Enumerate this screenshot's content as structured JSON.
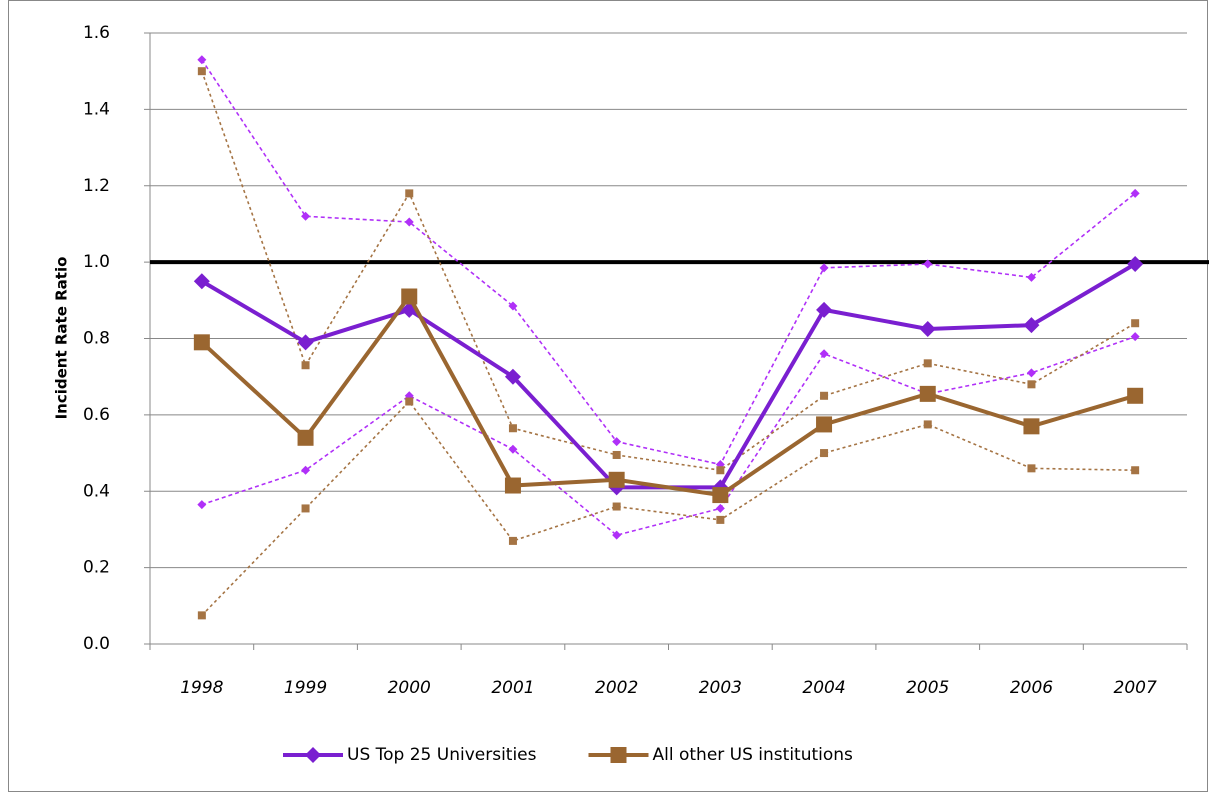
{
  "chart_data": {
    "type": "line",
    "y_label": "Incident Rate Ratio",
    "categories": [
      "1998",
      "1999",
      "2000",
      "2001",
      "2002",
      "2003",
      "2004",
      "2005",
      "2006",
      "2007"
    ],
    "ylim": [
      0,
      1.6
    ],
    "yticks": [
      {
        "value": 0,
        "label": "0.0"
      },
      0.2,
      0.4,
      0.6,
      0.8,
      {
        "value": 1,
        "label": "1.0"
      },
      1.2,
      1.4,
      1.6
    ],
    "grid": true,
    "reference_line": 1,
    "legend": "bottom",
    "series": [
      {
        "name": "US Top 25 Universities",
        "color": "#7a1fd0",
        "marker": "diamond",
        "style": "solid",
        "values": [
          0.95,
          0.79,
          0.875,
          0.7,
          0.41,
          0.41,
          0.875,
          0.825,
          0.835,
          0.995
        ]
      },
      {
        "name": "All other US institutions",
        "color": "#9a6630",
        "marker": "square",
        "style": "solid",
        "values": [
          0.79,
          0.54,
          0.91,
          0.415,
          0.43,
          0.39,
          0.575,
          0.655,
          0.57,
          0.65
        ]
      },
      {
        "color": "#b030f8",
        "marker": "diamond",
        "style": "dashed",
        "values": [
          1.53,
          1.12,
          1.105,
          0.885,
          0.53,
          0.47,
          0.985,
          0.995,
          0.96,
          1.18
        ]
      },
      {
        "color": "#b030f8",
        "marker": "diamond",
        "style": "dashed",
        "values": [
          0.365,
          0.455,
          0.65,
          0.51,
          0.285,
          0.355,
          0.76,
          0.655,
          0.71,
          0.805
        ]
      },
      {
        "color": "#a57444",
        "marker": "square",
        "style": "dotted",
        "values": [
          1.5,
          0.73,
          1.18,
          0.565,
          0.495,
          0.455,
          0.65,
          0.735,
          0.68,
          0.84
        ]
      },
      {
        "color": "#a57444",
        "marker": "square",
        "style": "dotted",
        "values": [
          0.075,
          0.355,
          0.635,
          0.27,
          0.36,
          0.325,
          0.5,
          0.575,
          0.46,
          0.455
        ]
      }
    ]
  }
}
